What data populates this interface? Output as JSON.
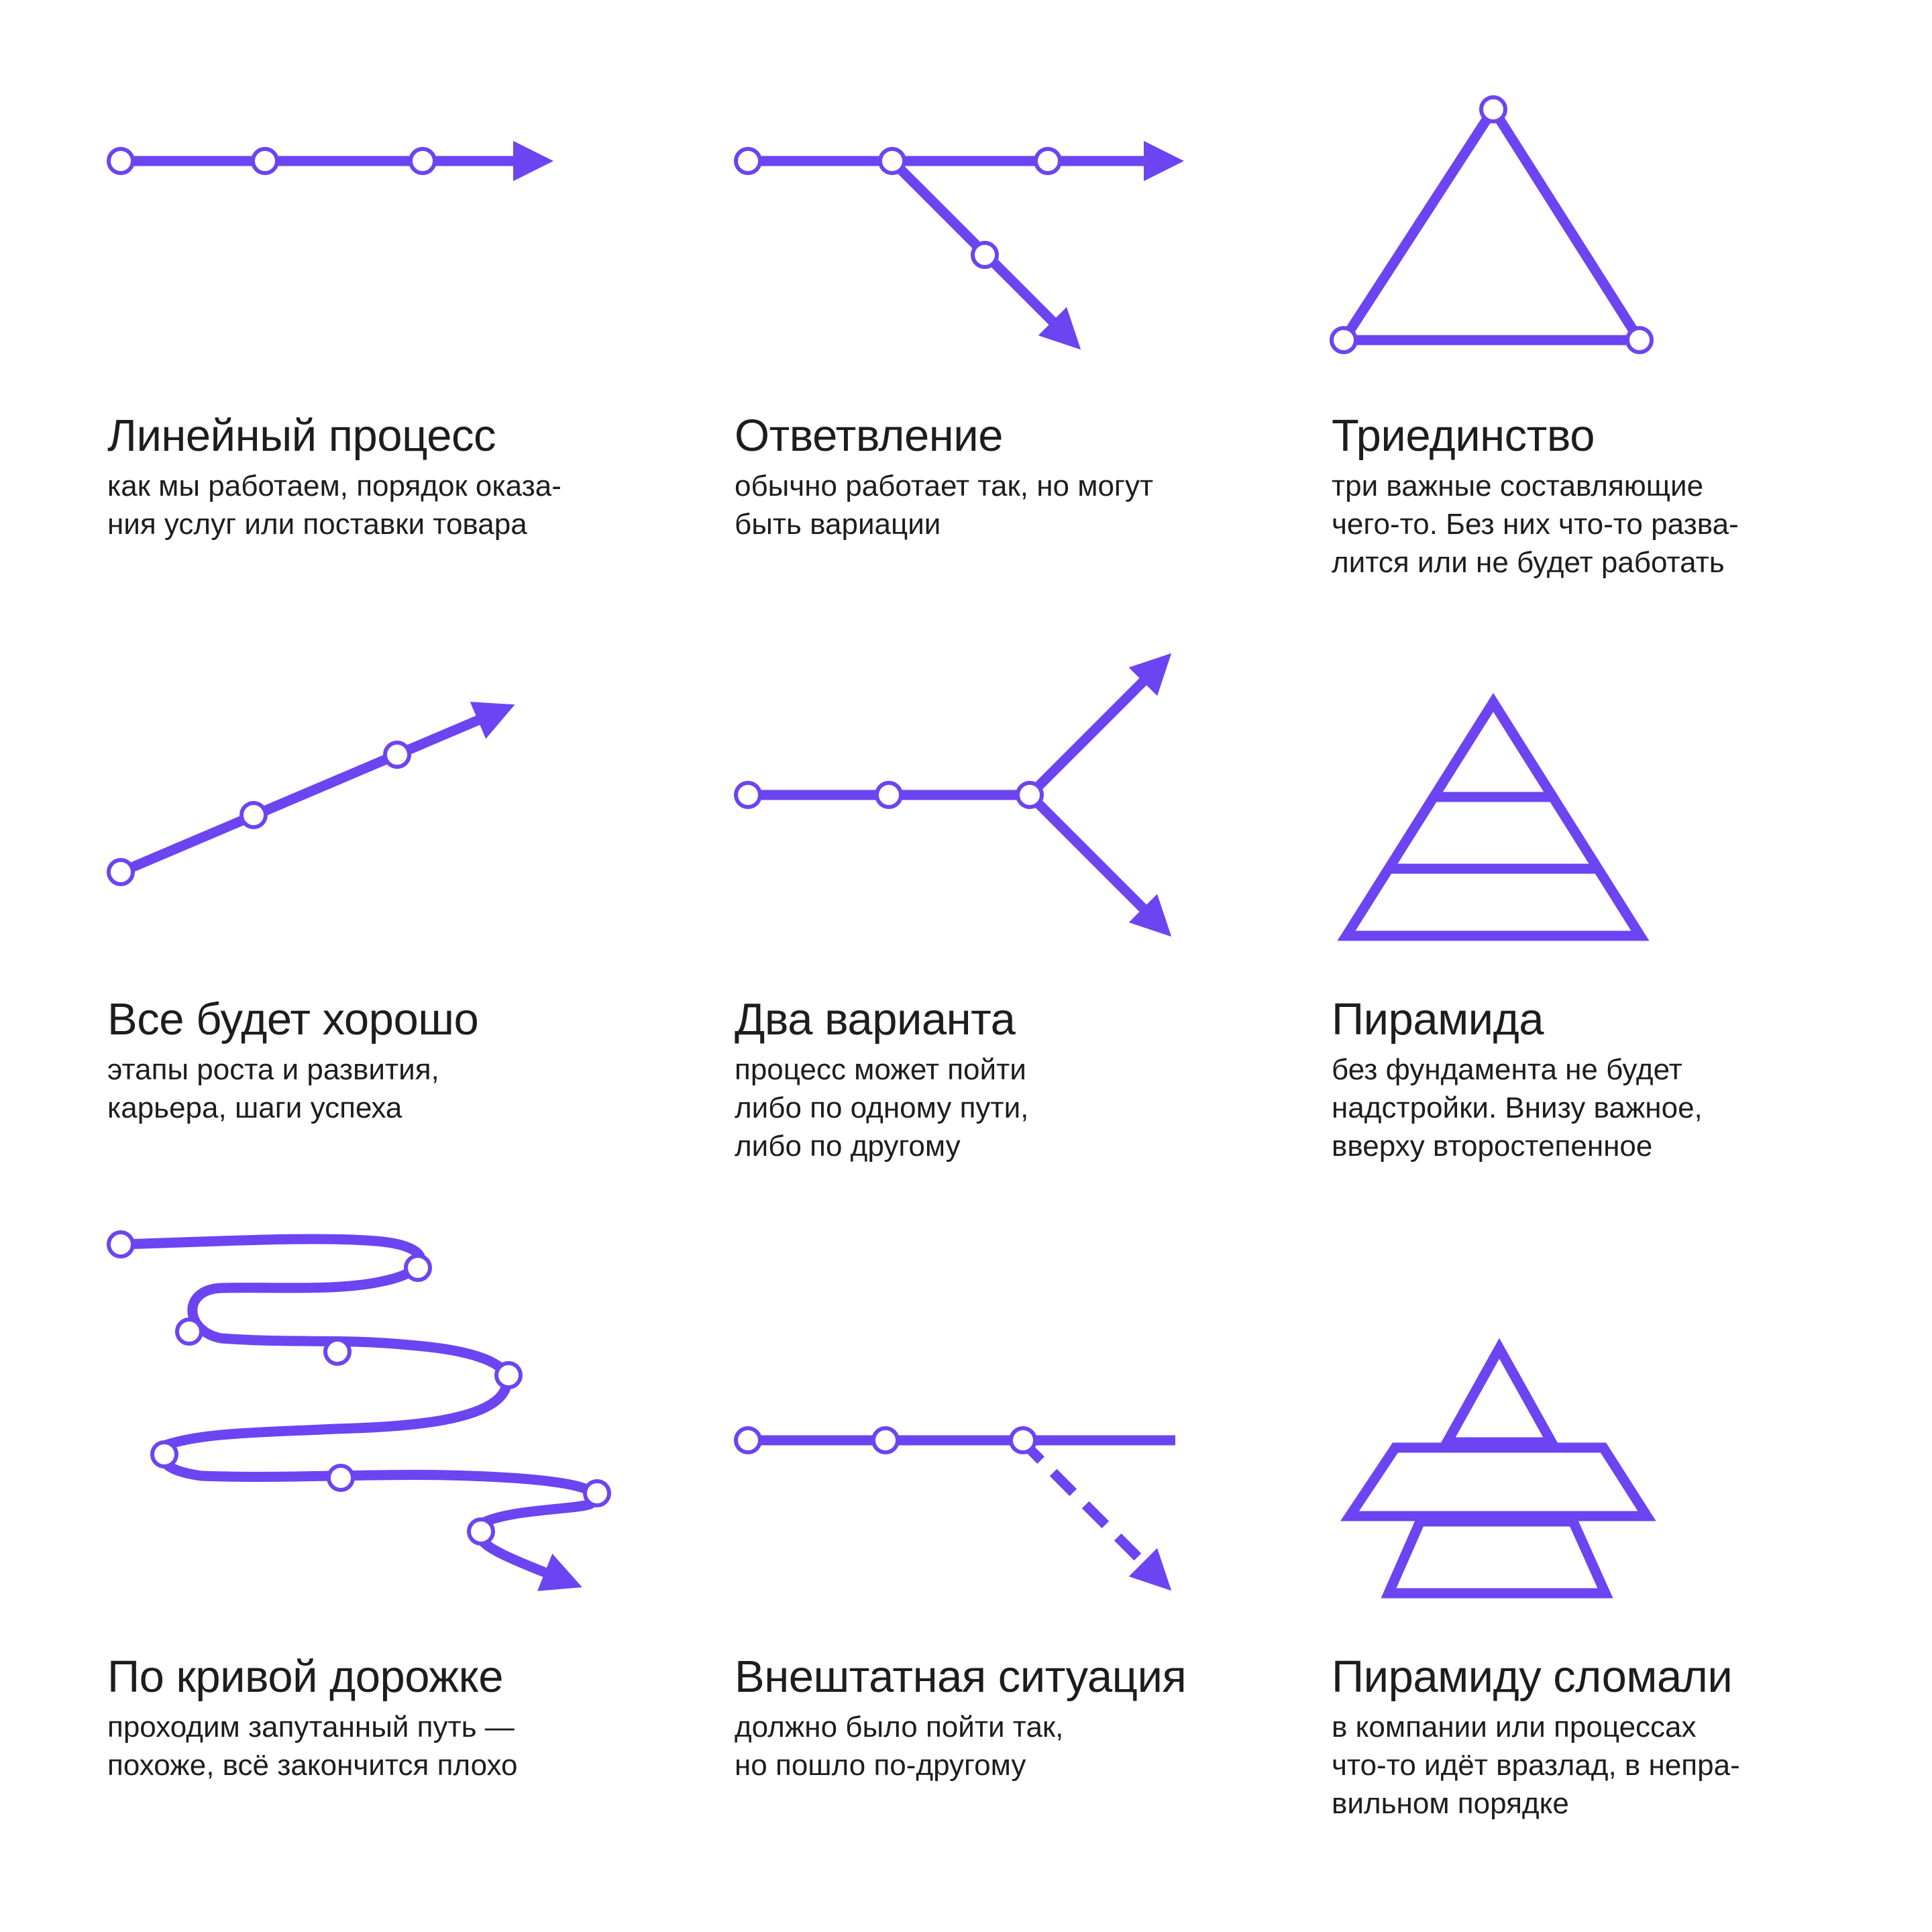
{
  "accent_color": "#6c44f1",
  "node_fill": "#ffffff",
  "cards": [
    {
      "id": "linear",
      "title": "Линейный процесс",
      "description": "как мы работаем, порядок оказа-\nния услуг или поставки товара"
    },
    {
      "id": "branch",
      "title": "Ответвление",
      "description": "обычно работает так, но могут\nбыть вариации"
    },
    {
      "id": "trinity",
      "title": "Триединство",
      "description": "три важные составляющие\nчего-то. Без них что-то разва-\nлится или не будет работать"
    },
    {
      "id": "growth",
      "title": "Все будет хорошо",
      "description": "этапы роста и развития,\nкарьера, шаги успеха"
    },
    {
      "id": "two-options",
      "title": "Два варианта",
      "description": "процесс может пойти\nлибо по одному пути,\nлибо по другому"
    },
    {
      "id": "pyramid",
      "title": "Пирамида",
      "description": "без фундамента не будет\nнадстройки. Внизу важное,\nвверху второстепенное"
    },
    {
      "id": "winding",
      "title": "По кривой дорожке",
      "description": "проходим запутанный путь —\nпохоже, всё закончится плохо"
    },
    {
      "id": "emergency",
      "title": "Внештатная ситуация",
      "description": "должно было пойти так,\nно пошло по-другому"
    },
    {
      "id": "broken-pyramid",
      "title": "Пирамиду сломали",
      "description": "в компании или процессах\nчто-то идёт вразлад, в непра-\nвильном порядке"
    }
  ]
}
